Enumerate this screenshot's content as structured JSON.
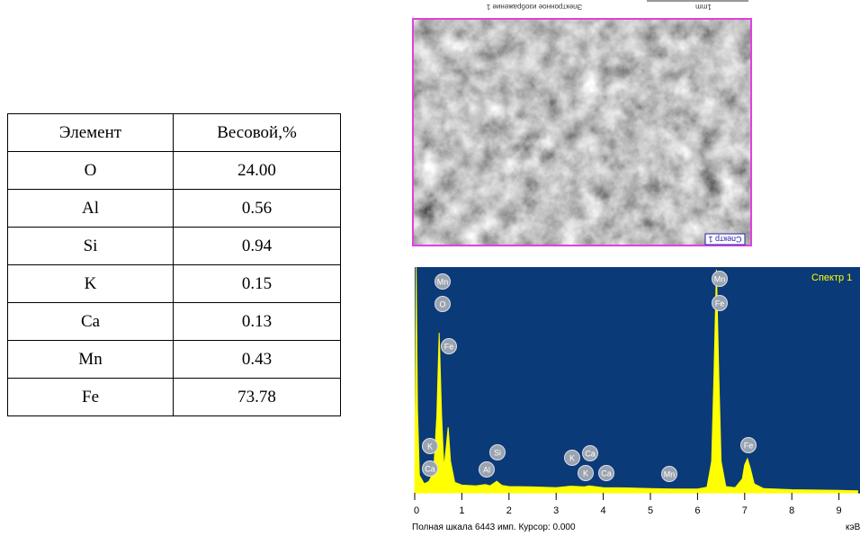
{
  "table": {
    "header": [
      "Элемент",
      "Весовой,%"
    ],
    "rows": [
      [
        "O",
        "24.00"
      ],
      [
        "Al",
        "0.56"
      ],
      [
        "Si",
        "0.94"
      ],
      [
        "K",
        "0.15"
      ],
      [
        "Ca",
        "0.13"
      ],
      [
        "Mn",
        "0.43"
      ],
      [
        "Fe",
        "73.78"
      ]
    ]
  },
  "image": {
    "caption": "Электронное изображение 1",
    "scale": "1mm",
    "label": "Спектр 1"
  },
  "spectrum": {
    "type": "area",
    "title": "Спектр 1",
    "color": "#ffff00",
    "background": "#0b3a78",
    "x": [
      0,
      0.03,
      0.06,
      0.1,
      0.2,
      0.3,
      0.4,
      0.47,
      0.52,
      0.57,
      0.62,
      0.66,
      0.71,
      0.76,
      0.85,
      1.0,
      1.3,
      1.5,
      1.6,
      1.74,
      1.85,
      2.0,
      2.5,
      3.0,
      3.3,
      3.6,
      3.7,
      4.0,
      4.5,
      5.0,
      5.5,
      6.0,
      6.2,
      6.3,
      6.35,
      6.4,
      6.45,
      6.5,
      6.6,
      6.8,
      6.95,
      7.0,
      7.06,
      7.12,
      7.2,
      7.4,
      8.0,
      9.0,
      9.4
    ],
    "values": [
      0,
      6443,
      2400,
      500,
      260,
      320,
      600,
      2200,
      4570,
      2200,
      700,
      1200,
      1870,
      900,
      300,
      220,
      200,
      240,
      200,
      330,
      210,
      180,
      170,
      150,
      190,
      170,
      200,
      150,
      140,
      120,
      110,
      110,
      160,
      900,
      3400,
      6370,
      3400,
      900,
      180,
      150,
      400,
      800,
      975,
      700,
      260,
      120,
      90,
      70,
      60
    ],
    "xlim": [
      0,
      9.4
    ],
    "ylim": [
      0,
      6443
    ],
    "xticks": [
      0,
      1,
      2,
      3,
      4,
      5,
      6,
      7,
      8,
      9
    ],
    "xunit": "кэВ",
    "labels": [
      "Mn",
      "O",
      "Fe",
      "K",
      "Ca",
      "Al",
      "Si",
      "K",
      "Ca",
      "K",
      "Ca",
      "Mn",
      "Mn",
      "Fe",
      "Fe"
    ],
    "footer": "Полная шкала 6443 имп. Курсор: 0.000"
  }
}
